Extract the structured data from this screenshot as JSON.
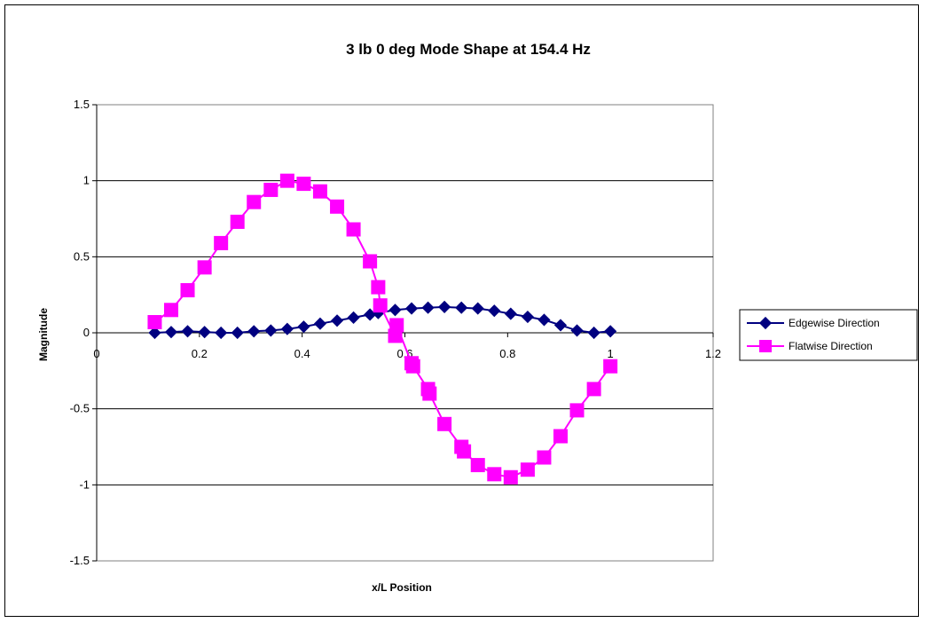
{
  "chart_data": {
    "type": "line",
    "title": "3 lb 0 deg Mode Shape at 154.4 Hz",
    "xlabel": "x/L Position",
    "ylabel": "Magnitude",
    "xlim": [
      0,
      1.2
    ],
    "ylim": [
      -1.5,
      1.5
    ],
    "x_ticks": [
      "0",
      "0.2",
      "0.4",
      "0.6",
      "0.8",
      "1",
      "1.2"
    ],
    "y_ticks": [
      "1.5",
      "1",
      "0.5",
      "0",
      "-0.5",
      "-1",
      "-1.5"
    ],
    "grid": "horizontal",
    "legend_position": "right",
    "series": [
      {
        "name": "Edgewise Direction",
        "color": "#000080",
        "marker": "diamond",
        "x": [
          0.113,
          0.145,
          0.177,
          0.21,
          0.242,
          0.274,
          0.306,
          0.339,
          0.371,
          0.403,
          0.435,
          0.468,
          0.5,
          0.532,
          0.548,
          0.581,
          0.613,
          0.645,
          0.677,
          0.71,
          0.742,
          0.774,
          0.806,
          0.839,
          0.871,
          0.903,
          0.935,
          0.968,
          1.0
        ],
        "y": [
          0.0,
          0.005,
          0.01,
          0.005,
          0.0,
          0.0,
          0.01,
          0.015,
          0.025,
          0.04,
          0.06,
          0.08,
          0.1,
          0.12,
          0.13,
          0.15,
          0.16,
          0.165,
          0.17,
          0.165,
          0.16,
          0.145,
          0.125,
          0.105,
          0.085,
          0.05,
          0.015,
          0.0,
          0.01
        ]
      },
      {
        "name": "Flatwise Direction",
        "color": "#FF00FF",
        "marker": "square",
        "x": [
          0.113,
          0.145,
          0.177,
          0.21,
          0.242,
          0.274,
          0.306,
          0.339,
          0.371,
          0.403,
          0.435,
          0.468,
          0.5,
          0.532,
          0.548,
          0.552,
          0.581,
          0.584,
          0.613,
          0.616,
          0.645,
          0.648,
          0.677,
          0.71,
          0.715,
          0.742,
          0.774,
          0.806,
          0.839,
          0.871,
          0.903,
          0.935,
          0.968,
          1.0
        ],
        "y": [
          0.07,
          0.15,
          0.28,
          0.43,
          0.59,
          0.73,
          0.86,
          0.94,
          1.0,
          0.98,
          0.93,
          0.83,
          0.68,
          0.47,
          0.3,
          0.18,
          -0.02,
          0.05,
          -0.2,
          -0.22,
          -0.37,
          -0.4,
          -0.6,
          -0.75,
          -0.78,
          -0.87,
          -0.93,
          -0.95,
          -0.9,
          -0.82,
          -0.68,
          -0.51,
          -0.37,
          -0.22
        ]
      }
    ]
  }
}
